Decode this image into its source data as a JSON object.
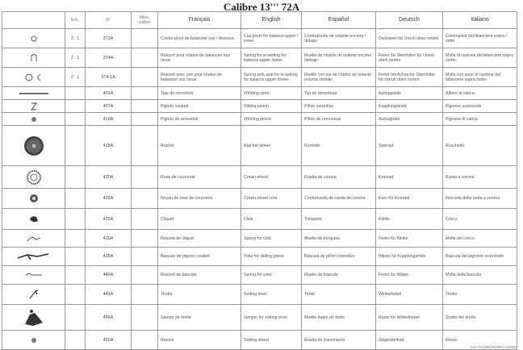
{
  "title": "Calibre 13''' 72A",
  "headers": {
    "image": "",
    "scale": "Ech.",
    "number": "N°",
    "ident": "Ident. calibre",
    "fr": "Français",
    "en": "English",
    "es": "Español",
    "de": "Deutsch",
    "it": "Italiano"
  },
  "rows": [
    {
      "icon": "cap-jewel-icon",
      "scale": "2 : 1",
      "number": "373A",
      "fr": "Contre-pivot de balancier sus / dessous",
      "en": "Cap jewel for balance upper / lower",
      "es": "Contrapivote de volante encima / debajo",
      "de": "Deckstein für Unruh oben /unten",
      "it": "Contropivot del bilanciere sopra / sotto"
    },
    {
      "icon": "spring-icon",
      "scale": "2 : 1",
      "number": "374A",
      "fr": "Ressort pour chaton de balancier sus /sous",
      "en": "Spring for in-setting for balance upper /lower",
      "es": "Muelle de chatón de volante encima /debajo",
      "de": "Feder für Steinfutter für Unruh oben /unten",
      "it": "Molla di castone del bilanciere sopra /sotto"
    },
    {
      "icon": "spring-with-axle-icon",
      "scale": "2 : 1",
      "number": "374-1A",
      "fr": "Ressort avec axe pour chaton de balancier sus /sous",
      "en": "Spring with axle for in-setting for balance upper /lower",
      "es": "Muelle con eje de chatón de volante encima /debajo",
      "de": "Feder mit Achse für Steinfutter für Unruh oben /unten",
      "it": "Molla con asse di castone del bilanciere sopra /sotto"
    },
    {
      "icon": "winding-stem-icon",
      "scale": "",
      "number": "401A",
      "fr": "Tige de remontoir",
      "en": "Winding stem",
      "es": "Tija de remontuar",
      "de": "Aufzugwelle",
      "it": "Albero di carica"
    },
    {
      "icon": "sliding-pinion-icon",
      "scale": "",
      "number": "407A",
      "fr": "Pignon coulant",
      "en": "Sliding pinion",
      "es": "Piñón corredizo",
      "de": "Kupplungstrieb",
      "it": "Pignone scorrevole"
    },
    {
      "icon": "winding-pinion-icon",
      "scale": "",
      "number": "410A",
      "fr": "Pignon de remontoir",
      "en": "Winding pinion",
      "es": "Piñón de remontuar",
      "de": "Aufzugtrieb",
      "it": "Pignone di carica"
    },
    {
      "icon": "ratchet-wheel-icon",
      "scale": "",
      "number": "415A",
      "fr": "Rochet",
      "en": "Ratchet wheel",
      "es": "Rochete",
      "de": "Sperrad",
      "it": "Rocchetto"
    },
    {
      "icon": "crown-wheel-icon",
      "scale": "",
      "number": "420A",
      "fr": "Roue de couronne",
      "en": "Crown wheel",
      "es": "Rueda de corona",
      "de": "Kronrad",
      "it": "Ruota a corona"
    },
    {
      "icon": "crown-wheel-core-icon",
      "scale": "",
      "number": "423A",
      "fr": "Noyau de roue de couronne",
      "en": "Crown wheel core",
      "es": "Contrarueda de rueda de corona",
      "de": "Kern für Kronrad",
      "it": "Nocciolo della ruota a corona"
    },
    {
      "icon": "click-icon",
      "scale": "",
      "number": "425A",
      "fr": "Cliquet",
      "en": "Click",
      "es": "Trinquete",
      "de": "Klinke",
      "it": "Cricco"
    },
    {
      "icon": "click-spring-icon",
      "scale": "",
      "number": "430A",
      "fr": "Ressort de cliquet",
      "en": "Spring for click",
      "es": "Muelle de trinquete",
      "de": "Feder für Klinke",
      "it": "Molla del cricco"
    },
    {
      "icon": "yoke-icon",
      "scale": "",
      "number": "435A",
      "fr": "Bascule de pignon coulant",
      "en": "Yoke for sliding pinion",
      "es": "Báscula de piñón corredizo",
      "de": "Wippe für Kupplungstrieb",
      "it": "Bascula del pignone scorrevole"
    },
    {
      "icon": "yoke-spring-icon",
      "scale": "",
      "number": "440A",
      "fr": "Ressort de bascule",
      "en": "Spring for yoke",
      "es": "Muelle de báscula",
      "de": "Feder für Wippe",
      "it": "Molla della bascula"
    },
    {
      "icon": "setting-lever-icon",
      "scale": "",
      "number": "443A",
      "fr": "Tirette",
      "en": "Setting lever",
      "es": "Tirete",
      "de": "Winkelhebel",
      "it": "Tiretto"
    },
    {
      "icon": "setting-lever-jumper-icon",
      "scale": "",
      "number": "445A",
      "fr": "Sautoir de tirette",
      "en": "Jumper for setting lever",
      "es": "Muelle fiador de tirete",
      "de": "Raste für Winkelhebel",
      "it": "Scatto del tiretto"
    },
    {
      "icon": "setting-wheel-icon",
      "scale": "",
      "number": "450A",
      "fr": "Renvoi",
      "en": "Setting wheel",
      "es": "Rueda de transmisión",
      "de": "Zeigerstellrad",
      "it": "Rinvio"
    }
  ],
  "footer": "SAV FOURNITURES 6/2000",
  "watermark": "watchlead.com"
}
